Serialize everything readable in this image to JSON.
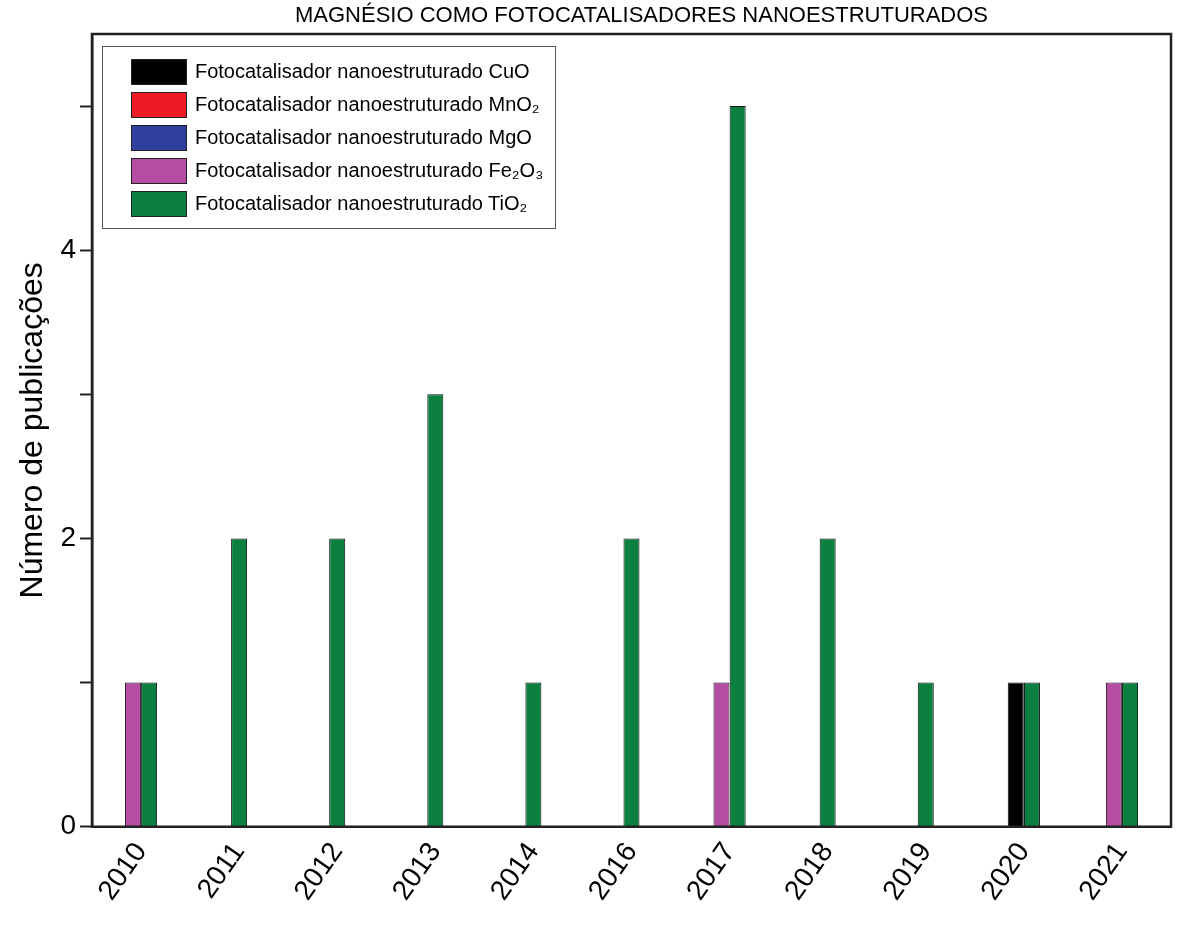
{
  "chart_data": {
    "type": "bar",
    "title": "MAGNÉSIO COMO FOTOCATALISADORES NANOESTRUTURADOS",
    "ylabel": "Número de publicações",
    "categories": [
      "2010",
      "2011",
      "2012",
      "2013",
      "2014",
      "2016",
      "2017",
      "2018",
      "2019",
      "2020",
      "2021"
    ],
    "series": [
      {
        "name": "Fotocatalisador nanoestruturado CuO",
        "color": "#000000",
        "values": [
          null,
          null,
          null,
          null,
          null,
          null,
          null,
          null,
          null,
          1,
          null
        ]
      },
      {
        "name": "Fotocatalisador nanoestruturado MnO₂",
        "color": "#ed1c24",
        "values": [
          null,
          null,
          null,
          null,
          null,
          null,
          null,
          null,
          null,
          null,
          null
        ]
      },
      {
        "name": "Fotocatalisador nanoestruturado MgO",
        "color": "#2e3f9e",
        "values": [
          null,
          null,
          null,
          null,
          null,
          null,
          null,
          null,
          null,
          null,
          null
        ]
      },
      {
        "name": "Fotocatalisador nanoestruturado Fe₂O₃",
        "color": "#b54da3",
        "values": [
          1,
          null,
          null,
          null,
          null,
          null,
          1,
          null,
          null,
          null,
          1
        ]
      },
      {
        "name": "Fotocatalisador nanoestruturado TiO₂",
        "color": "#0b8040",
        "values": [
          1,
          2,
          2,
          3,
          1,
          2,
          5,
          2,
          1,
          1,
          1
        ]
      }
    ],
    "ylim": [
      0,
      5.5
    ],
    "yticks": [
      0,
      {
        "value": 1,
        "label": null
      },
      2,
      {
        "value": 3,
        "label": null
      },
      4,
      {
        "value": 5,
        "label": null
      }
    ],
    "grid": false,
    "legend": "top left"
  }
}
